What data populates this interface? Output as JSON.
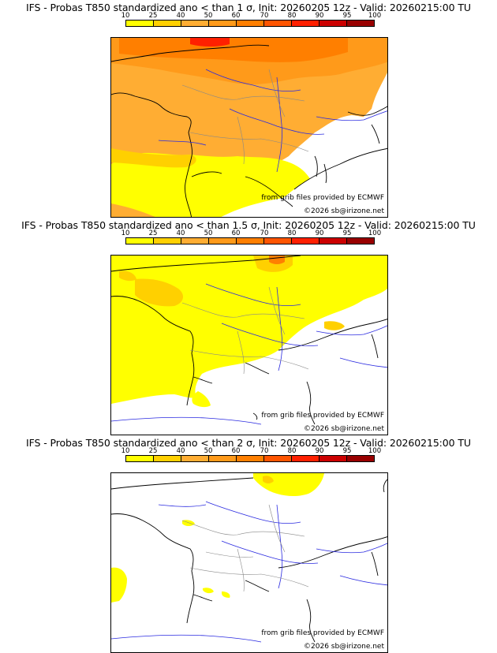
{
  "colorbar": {
    "ticks": [
      "10",
      "25",
      "40",
      "50",
      "60",
      "70",
      "80",
      "90",
      "95",
      "100"
    ],
    "colors": [
      "#ffff00",
      "#ffd000",
      "#ffad33",
      "#ff9a1a",
      "#ff7f00",
      "#ff5500",
      "#ff2000",
      "#cc0000",
      "#990000",
      "#550000"
    ]
  },
  "panels": [
    {
      "title": "IFS - Probas T850  standardized ano < than 1 σ, Init: 20260205 12z - Valid: 20260215:00 TU",
      "credit_source": "from grib files provided by ECMWF",
      "credit_copyright": "©2026 sb@irizone.net"
    },
    {
      "title": "IFS - Probas T850  standardized ano < than 1.5 σ, Init: 20260205 12z - Valid: 20260215:00 TU",
      "credit_source": "from grib files provided by ECMWF",
      "credit_copyright": "©2026 sb@irizone.net"
    },
    {
      "title": "IFS - Probas T850  standardized ano < than 2 σ, Init: 20260205 12z - Valid: 20260215:00 TU",
      "credit_source": "from grib files provided by ECMWF",
      "credit_copyright": "©2026 sb@irizone.net"
    }
  ]
}
